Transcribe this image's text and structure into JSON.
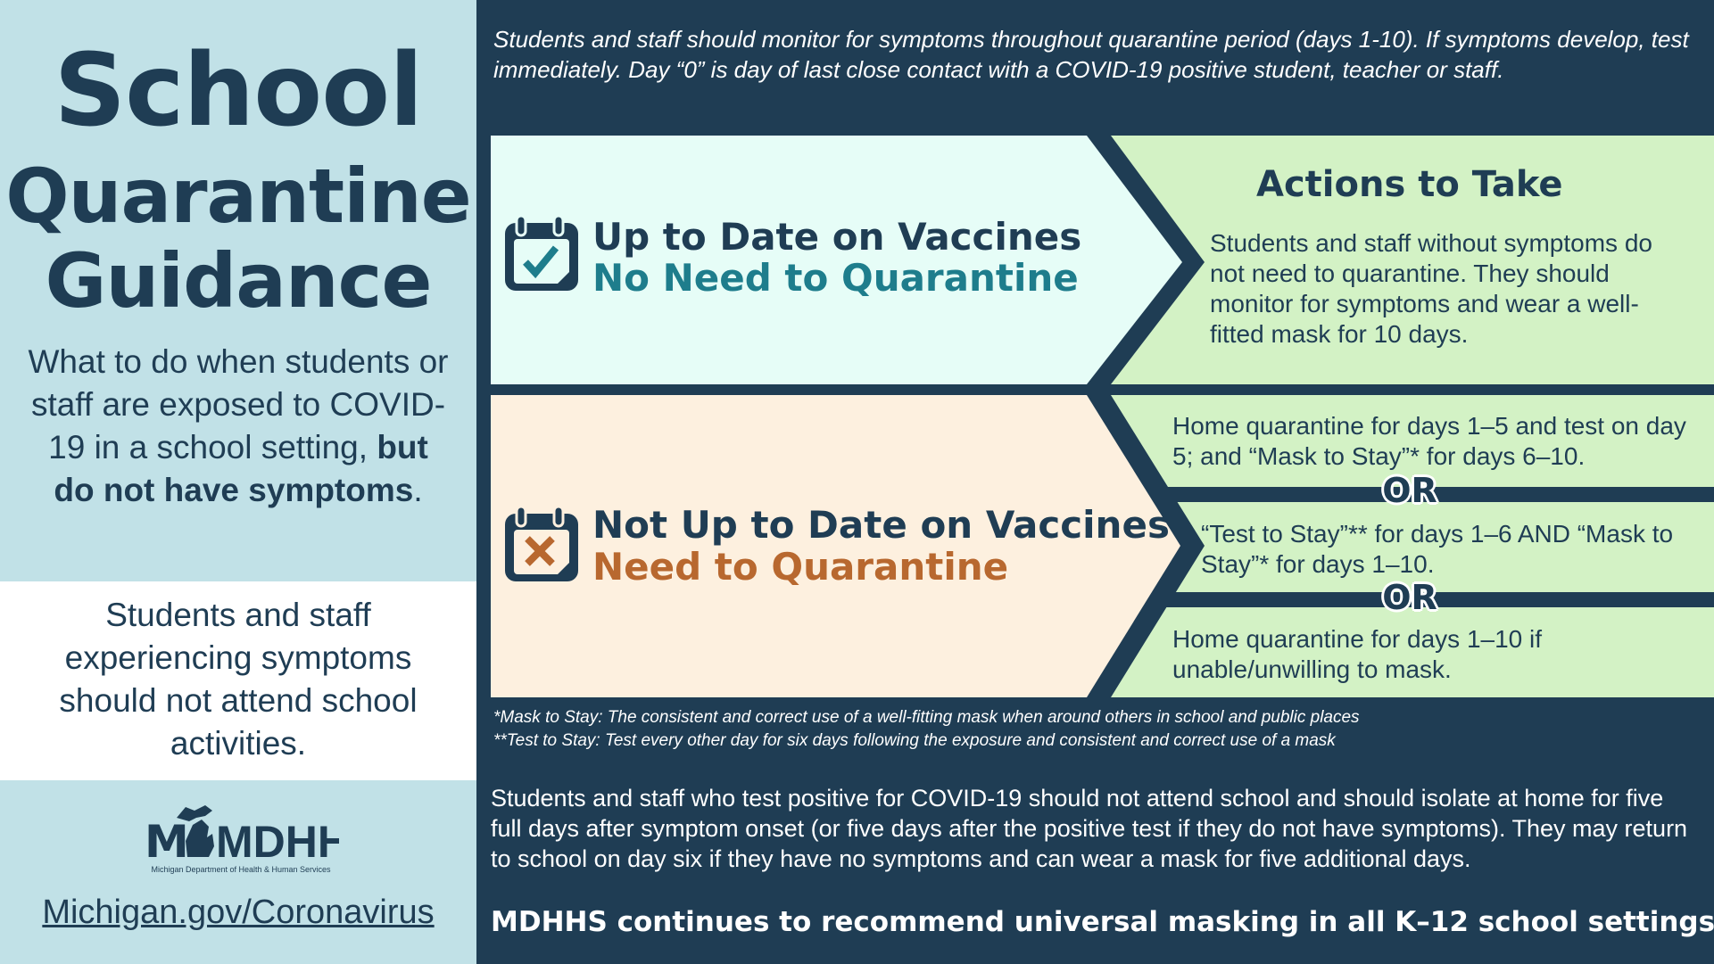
{
  "left": {
    "title": [
      "School",
      "Quarantine",
      "Guidance"
    ],
    "subtitle_start": "What to do when students or staff are exposed to COVID-19 in a school setting, ",
    "subtitle_bold": "but do not have symptoms",
    "subtitle_end": ".",
    "symptoms_note": "Students and staff experiencing symptoms should not attend school activities.",
    "logo_text": "MDHHS",
    "logo_tagline": "Michigan Department of Health & Human Services",
    "link": "Michigan.gov/Coronavirus"
  },
  "intro": "Students and staff should monitor for symptoms throughout quarantine period (days 1-10). If symptoms develop, test immediately. Day “0” is day of last close contact with a COVID-19 positive student, teacher or staff.",
  "upper": {
    "icon": "calendar-check-icon",
    "line1": "Up to Date on Vaccines",
    "line2": "No Need to Quarantine",
    "actions_title": "Actions to Take",
    "actions_text": "Students and staff without symptoms do not need to quarantine. They should monitor for symptoms and wear a well-fitted mask for 10 days."
  },
  "lower": {
    "icon": "calendar-x-icon",
    "line1": "Not Up to Date on Vaccines",
    "line2": "Need to Quarantine",
    "options": [
      "Home quarantine for days 1–5 and test on day 5; and “Mask to Stay”* for days 6–10.",
      "“Test to Stay”** for days 1–6 AND “Mask to Stay”* for days 1–10.",
      "Home quarantine for days 1–10 if unable/unwilling to mask."
    ],
    "or_label": "OR"
  },
  "footnotes": [
    "*Mask to Stay: The consistent and correct use of a well-fitting mask when around others in school and public places",
    "**Test to Stay: Test every other day for six days following the exposure and consistent and correct use of a mask"
  ],
  "positive_text": "Students and staff who test positive for COVID-19 should not attend school and should isolate at home for five full days after symptom onset (or five days after the positive test if they do not have symptoms). They may return to school on day six if they have no symptoms and can wear a mask for five additional days.",
  "recommendation": "MDHHS continues to recommend universal masking in all K–12 school settings.",
  "colors": {
    "dark": "#1f3d54",
    "teal": "#1e7d8c",
    "orange": "#b8682f",
    "green": "#d3f2c5",
    "mint": "#e6fdf7",
    "peach": "#fdf0df",
    "left_blue": "#c1e1e7"
  }
}
